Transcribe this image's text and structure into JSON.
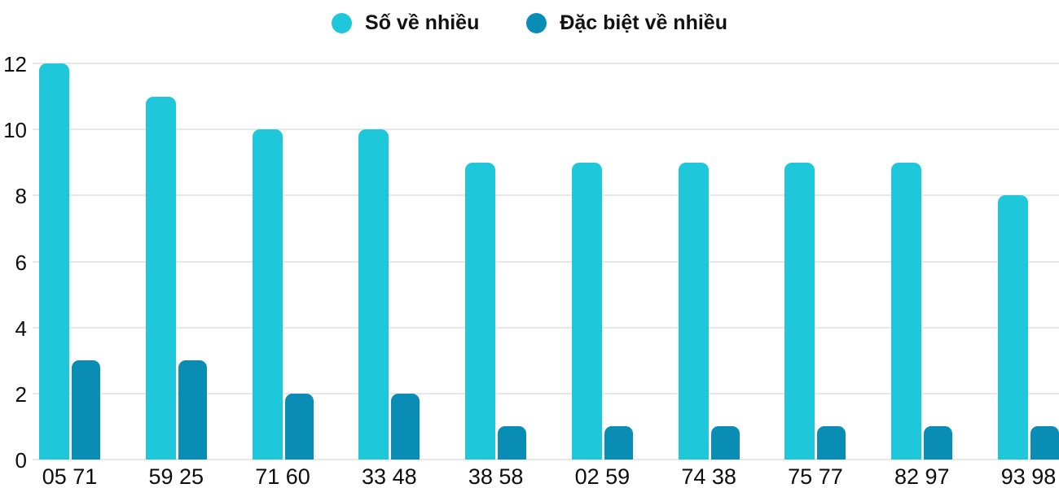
{
  "legend": {
    "items": [
      {
        "label": "Số về nhiều",
        "color": "#1fc7da"
      },
      {
        "label": "Đặc biệt về nhiều",
        "color": "#0a8db4"
      }
    ]
  },
  "chart_data": {
    "type": "bar",
    "title": "",
    "xlabel": "",
    "ylabel": "",
    "categories": [
      "05 71",
      "59 25",
      "71 60",
      "33 48",
      "38 58",
      "02 59",
      "74 38",
      "75 77",
      "82 97",
      "93 98"
    ],
    "series": [
      {
        "name": "Số về nhiều",
        "color": "#1fc7da",
        "values": [
          12,
          11,
          10,
          10,
          9,
          9,
          9,
          9,
          9,
          8
        ]
      },
      {
        "name": "Đặc biệt về nhiều",
        "color": "#0a8db4",
        "values": [
          3,
          3,
          2,
          2,
          1,
          1,
          1,
          1,
          1,
          1
        ]
      }
    ],
    "ylim": [
      0,
      12
    ],
    "yticks": [
      0,
      2,
      4,
      6,
      8,
      10,
      12
    ],
    "grid": true,
    "legend_position": "top",
    "tick_color": "#0d0d0d",
    "gridline_color": "#e7e7e7"
  }
}
